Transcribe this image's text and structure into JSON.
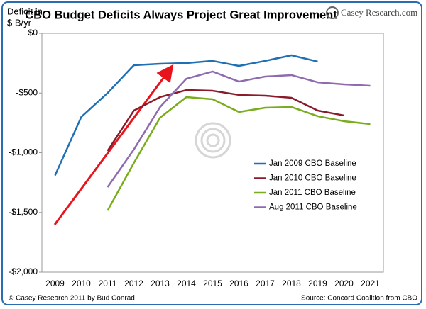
{
  "chart_data": {
    "type": "line",
    "title": "CBO Budget Deficits Always Project Great Improvement",
    "y_label_lines": [
      "Deficit in",
      "$ B/yr"
    ],
    "logo": "Casey Research.com",
    "copyright": "© Casey Research 2011 by Bud Conrad",
    "source": "Source: Concord Coalition from CBO",
    "categories": [
      "2009",
      "2010",
      "2011",
      "2012",
      "2013",
      "2014",
      "2015",
      "2016",
      "2017",
      "2018",
      "2019",
      "2020",
      "2021"
    ],
    "ylim": [
      -2000,
      0
    ],
    "yticks": [
      {
        "value": 0,
        "label": "$0"
      },
      {
        "value": -500,
        "label": "-$500"
      },
      {
        "value": -1000,
        "label": "-$1,000"
      },
      {
        "value": -1500,
        "label": "-$1,500"
      },
      {
        "value": -2000,
        "label": "-$2,000"
      }
    ],
    "series": [
      {
        "name": "Jan 2009 CBO Baseline",
        "color": "#1f6fb4",
        "values": [
          -1190,
          -700,
          -500,
          -267,
          -255,
          -249,
          -231,
          -273,
          -231,
          -184,
          -237,
          null,
          null
        ]
      },
      {
        "name": "Jan 2010 CBO Baseline",
        "color": "#8b1a2b",
        "values": [
          null,
          null,
          -985,
          -647,
          -534,
          -475,
          -481,
          -516,
          -522,
          -540,
          -647,
          -688,
          null
        ]
      },
      {
        "name": "Jan 2011 CBO Baseline",
        "color": "#7aac1e",
        "values": [
          null,
          null,
          -1484,
          -1086,
          -706,
          -534,
          -552,
          -659,
          -623,
          -617,
          -694,
          -736,
          -760
        ]
      },
      {
        "name": "Aug 2011 CBO Baseline",
        "color": "#8e6bb0",
        "values": [
          null,
          null,
          -1288,
          -973,
          -617,
          -380,
          -320,
          -404,
          -362,
          -350,
          -410,
          -427,
          -439
        ]
      }
    ]
  }
}
